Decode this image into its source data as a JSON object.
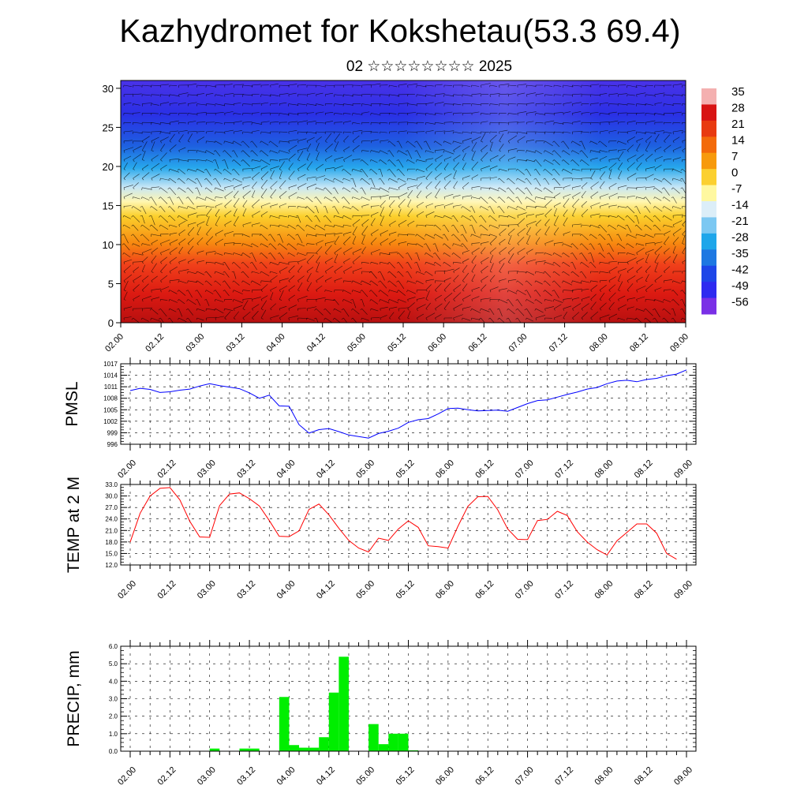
{
  "header": {
    "title": "Kazhydromet for Kokshetau(53.3 69.4)",
    "subtitle": "02 ☆☆☆☆☆☆☆☆ 2025"
  },
  "time_labels": [
    "02.00",
    "02.12",
    "03.00",
    "03.12",
    "04.00",
    "04.12",
    "05.00",
    "05.12",
    "06.00",
    "06.12",
    "07.00",
    "07.12",
    "08.00",
    "08.12",
    "09.00"
  ],
  "chart_data": [
    {
      "type": "heatmap",
      "y_ticks": [
        0,
        5,
        10,
        15,
        20,
        25,
        30
      ],
      "ylim": [
        0,
        31
      ],
      "x_tick_labels": [
        "02.00",
        "02.12",
        "03.00",
        "03.12",
        "04.00",
        "04.12",
        "05.00",
        "05.12",
        "06.00",
        "06.12",
        "07.00",
        "07.12",
        "08.00",
        "08.12",
        "09.00"
      ],
      "colorbar_labels": [
        "35",
        "28",
        "21",
        "14",
        "7",
        "0",
        "-7",
        "-14",
        "-21",
        "-28",
        "-35",
        "-42",
        "-49",
        "-56"
      ],
      "colorbar_colors": [
        "#f4b0b0",
        "#d81414",
        "#e83a10",
        "#f36a0a",
        "#f79a0c",
        "#fbd030",
        "#fff8a0",
        "#dceef8",
        "#7cc8f2",
        "#1ea6ea",
        "#1e78e2",
        "#1e46e8",
        "#2e2af0",
        "#7a30e6"
      ]
    },
    {
      "type": "line",
      "ylabel": "PMSL",
      "yticks": [
        996,
        999,
        1002,
        1005,
        1008,
        1011,
        1014,
        1017
      ],
      "ylim": [
        996,
        1017
      ],
      "x_tick_labels": [
        "02.00",
        "02.12",
        "03.00",
        "03.12",
        "04.00",
        "04.12",
        "05.00",
        "05.12",
        "06.00",
        "06.12",
        "07.00",
        "07.12",
        "08.00",
        "08.12",
        "09.00"
      ],
      "series": [
        {
          "color": "#0000ff",
          "x": [
            0,
            3,
            6,
            9,
            12,
            15,
            18,
            21,
            24,
            27,
            30,
            33,
            36,
            39,
            42,
            45,
            48,
            51,
            54,
            57,
            60,
            63,
            66,
            69,
            72,
            75,
            78,
            81,
            84,
            87,
            90,
            93,
            96,
            99,
            102,
            105,
            108,
            111,
            114,
            117,
            120,
            123,
            126,
            129,
            132,
            135,
            138,
            141,
            144,
            147,
            150,
            153,
            156,
            159,
            162,
            165,
            168
          ],
          "values": [
            1010.0,
            1010.6,
            1010.3,
            1009.5,
            1009.7,
            1010.1,
            1010.4,
            1011.2,
            1011.8,
            1011.3,
            1010.9,
            1010.5,
            1009.4,
            1008.0,
            1008.8,
            1006.0,
            1005.9,
            1001.1,
            998.9,
            999.8,
            1000.1,
            999.3,
            998.4,
            998.0,
            997.6,
            998.8,
            999.4,
            1000.2,
            1001.7,
            1002.4,
            1002.7,
            1003.9,
            1005.3,
            1005.4,
            1005.0,
            1004.7,
            1004.8,
            1004.9,
            1004.6,
            1005.6,
            1006.6,
            1007.4,
            1007.6,
            1008.3,
            1009.0,
            1009.6,
            1010.4,
            1010.8,
            1011.8,
            1012.5,
            1012.7,
            1012.3,
            1012.9,
            1013.2,
            1013.9,
            1014.3,
            1015.4
          ]
        }
      ]
    },
    {
      "type": "line",
      "ylabel": "TEMP at 2 M",
      "yticks": [
        "12.0",
        "15.0",
        "18.0",
        "21.0",
        "24.0",
        "27.0",
        "30.0",
        "33.0"
      ],
      "ylim": [
        12,
        33
      ],
      "x_tick_labels": [
        "02.00",
        "02.12",
        "03.00",
        "03.12",
        "04.00",
        "04.12",
        "05.00",
        "05.12",
        "06.00",
        "06.12",
        "07.00",
        "07.12",
        "08.00",
        "08.12",
        "09.00"
      ],
      "series": [
        {
          "color": "#ff0000",
          "x": [
            0,
            3,
            6,
            9,
            12,
            15,
            18,
            21,
            24,
            27,
            30,
            33,
            36,
            39,
            42,
            45,
            48,
            51,
            54,
            57,
            60,
            63,
            66,
            69,
            72,
            75,
            78,
            81,
            84,
            87,
            90,
            93,
            96,
            99,
            102,
            105,
            108,
            111,
            114,
            117,
            120,
            123,
            126,
            129,
            132,
            135,
            138,
            141,
            144,
            147,
            150,
            153,
            156,
            159,
            162,
            165
          ],
          "values": [
            18.0,
            25.5,
            30.0,
            32.0,
            32.2,
            29.0,
            23.4,
            19.3,
            19.2,
            27.5,
            30.5,
            30.8,
            29.3,
            27.4,
            23.6,
            19.5,
            19.4,
            20.9,
            26.5,
            27.9,
            25.1,
            21.6,
            18.4,
            16.4,
            15.4,
            19.0,
            18.4,
            21.4,
            23.5,
            21.8,
            17.0,
            16.8,
            16.4,
            22.1,
            27.3,
            29.8,
            29.9,
            26.4,
            21.4,
            18.7,
            18.6,
            23.6,
            23.9,
            26.0,
            24.9,
            20.7,
            18.0,
            16.0,
            14.6,
            18.3,
            20.5,
            22.7,
            22.7,
            20.3,
            15.0,
            13.5
          ]
        }
      ]
    },
    {
      "type": "bar",
      "ylabel": "PRECIP, mm",
      "yticks": [
        "0.0",
        "1.0",
        "2.0",
        "3.0",
        "4.0",
        "5.0",
        "6.0"
      ],
      "ylim": [
        0,
        6
      ],
      "x_tick_labels": [
        "02.00",
        "02.12",
        "03.00",
        "03.12",
        "04.00",
        "04.12",
        "05.00",
        "05.12",
        "06.00",
        "06.12",
        "07.00",
        "07.12",
        "08.00",
        "08.12",
        "09.00"
      ],
      "color": "#00ee00",
      "bar_width_hours": 3,
      "x": [
        24,
        33,
        36,
        45,
        48,
        51,
        54,
        57,
        60,
        63,
        72,
        75,
        78,
        81,
        84
      ],
      "values": [
        0.15,
        0.15,
        0.15,
        3.1,
        0.35,
        0.2,
        0.2,
        0.8,
        3.35,
        5.4,
        1.55,
        0.4,
        1.0,
        1.0,
        0.05
      ]
    }
  ]
}
